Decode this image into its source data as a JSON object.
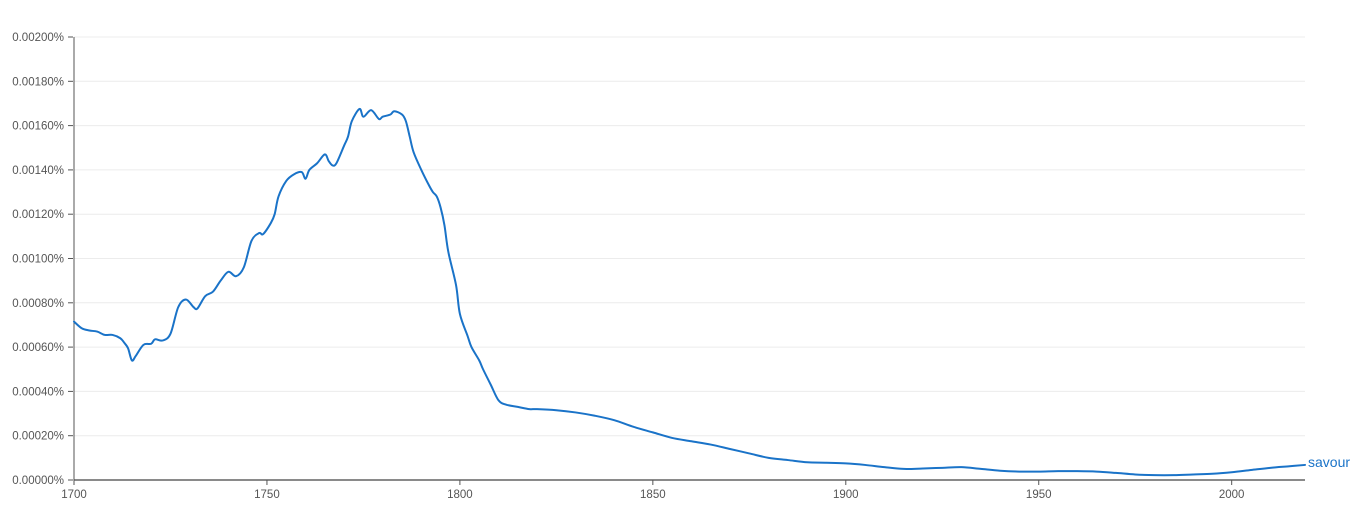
{
  "chart_data": {
    "type": "line",
    "title": "",
    "xlabel": "",
    "ylabel": "",
    "xlim": [
      1700,
      2019
    ],
    "ylim": [
      0,
      0.002
    ],
    "grid": true,
    "legend": "end-of-line",
    "x_ticks": [
      1700,
      1750,
      1800,
      1850,
      1900,
      1950,
      2000
    ],
    "x_tick_labels": [
      "1700",
      "1750",
      "1800",
      "1850",
      "1900",
      "1950",
      "2000"
    ],
    "y_ticks": [
      0,
      0.0002,
      0.0004,
      0.0006,
      0.0008,
      0.001,
      0.0012,
      0.0014,
      0.0016,
      0.0018,
      0.002
    ],
    "y_tick_labels": [
      "0.00000%",
      "0.00020%",
      "0.00040%",
      "0.00060%",
      "0.00080%",
      "0.00100%",
      "0.00120%",
      "0.00140%",
      "0.00160%",
      "0.00180%",
      "0.00200%"
    ],
    "series": [
      {
        "name": "savour",
        "color": "#1a73c8",
        "points": [
          [
            1700,
            0.000715
          ],
          [
            1702,
            0.000685
          ],
          [
            1704,
            0.000675
          ],
          [
            1706,
            0.00067
          ],
          [
            1708,
            0.000655
          ],
          [
            1710,
            0.000655
          ],
          [
            1712,
            0.00064
          ],
          [
            1713,
            0.00062
          ],
          [
            1714,
            0.000595
          ],
          [
            1715,
            0.00054
          ],
          [
            1716,
            0.00056
          ],
          [
            1718,
            0.00061
          ],
          [
            1720,
            0.000615
          ],
          [
            1721,
            0.000635
          ],
          [
            1723,
            0.00063
          ],
          [
            1725,
            0.00066
          ],
          [
            1727,
            0.00078
          ],
          [
            1729,
            0.000815
          ],
          [
            1731,
            0.00078
          ],
          [
            1732,
            0.000775
          ],
          [
            1734,
            0.00083
          ],
          [
            1736,
            0.00085
          ],
          [
            1738,
            0.0009
          ],
          [
            1740,
            0.00094
          ],
          [
            1742,
            0.00092
          ],
          [
            1744,
            0.00096
          ],
          [
            1746,
            0.00108
          ],
          [
            1748,
            0.001115
          ],
          [
            1749,
            0.00111
          ],
          [
            1751,
            0.00116
          ],
          [
            1752,
            0.0012
          ],
          [
            1753,
            0.00128
          ],
          [
            1755,
            0.00135
          ],
          [
            1757,
            0.00138
          ],
          [
            1759,
            0.00139
          ],
          [
            1760,
            0.00136
          ],
          [
            1761,
            0.0014
          ],
          [
            1763,
            0.00143
          ],
          [
            1765,
            0.00147
          ],
          [
            1766,
            0.00144
          ],
          [
            1767,
            0.00142
          ],
          [
            1768,
            0.00143
          ],
          [
            1770,
            0.00151
          ],
          [
            1771,
            0.00155
          ],
          [
            1772,
            0.00162
          ],
          [
            1774,
            0.001675
          ],
          [
            1775,
            0.00164
          ],
          [
            1777,
            0.00167
          ],
          [
            1779,
            0.00163
          ],
          [
            1780,
            0.00164
          ],
          [
            1782,
            0.00165
          ],
          [
            1783,
            0.001665
          ],
          [
            1785,
            0.00165
          ],
          [
            1786,
            0.00162
          ],
          [
            1787,
            0.00155
          ],
          [
            1788,
            0.00148
          ],
          [
            1790,
            0.0014
          ],
          [
            1792,
            0.00133
          ],
          [
            1793,
            0.0013
          ],
          [
            1794,
            0.00128
          ],
          [
            1795,
            0.00123
          ],
          [
            1796,
            0.00115
          ],
          [
            1797,
            0.00103
          ],
          [
            1799,
            0.00088
          ],
          [
            1800,
            0.00075
          ],
          [
            1802,
            0.00065
          ],
          [
            1803,
            0.0006
          ],
          [
            1805,
            0.00054
          ],
          [
            1806,
            0.0005
          ],
          [
            1808,
            0.00043
          ],
          [
            1810,
            0.00036
          ],
          [
            1812,
            0.00034
          ],
          [
            1815,
            0.00033
          ],
          [
            1818,
            0.00032
          ],
          [
            1820,
            0.00032
          ],
          [
            1825,
            0.000315
          ],
          [
            1830,
            0.000305
          ],
          [
            1835,
            0.00029
          ],
          [
            1840,
            0.00027
          ],
          [
            1845,
            0.00024
          ],
          [
            1850,
            0.000215
          ],
          [
            1855,
            0.00019
          ],
          [
            1860,
            0.000175
          ],
          [
            1865,
            0.00016
          ],
          [
            1870,
            0.00014
          ],
          [
            1875,
            0.00012
          ],
          [
            1880,
            0.0001
          ],
          [
            1885,
            9e-05
          ],
          [
            1890,
            8e-05
          ],
          [
            1895,
            7.8e-05
          ],
          [
            1900,
            7.5e-05
          ],
          [
            1905,
            6.8e-05
          ],
          [
            1910,
            5.8e-05
          ],
          [
            1915,
            5e-05
          ],
          [
            1920,
            5.2e-05
          ],
          [
            1925,
            5.5e-05
          ],
          [
            1930,
            5.8e-05
          ],
          [
            1935,
            5e-05
          ],
          [
            1940,
            4.2e-05
          ],
          [
            1945,
            3.8e-05
          ],
          [
            1950,
            3.8e-05
          ],
          [
            1955,
            4e-05
          ],
          [
            1960,
            4e-05
          ],
          [
            1965,
            3.8e-05
          ],
          [
            1970,
            3.2e-05
          ],
          [
            1975,
            2.5e-05
          ],
          [
            1980,
            2.2e-05
          ],
          [
            1985,
            2.2e-05
          ],
          [
            1990,
            2.5e-05
          ],
          [
            1995,
            2.8e-05
          ],
          [
            2000,
            3.5e-05
          ],
          [
            2005,
            4.5e-05
          ],
          [
            2010,
            5.5e-05
          ],
          [
            2015,
            6.2e-05
          ],
          [
            2019,
            6.8e-05
          ]
        ]
      }
    ]
  }
}
